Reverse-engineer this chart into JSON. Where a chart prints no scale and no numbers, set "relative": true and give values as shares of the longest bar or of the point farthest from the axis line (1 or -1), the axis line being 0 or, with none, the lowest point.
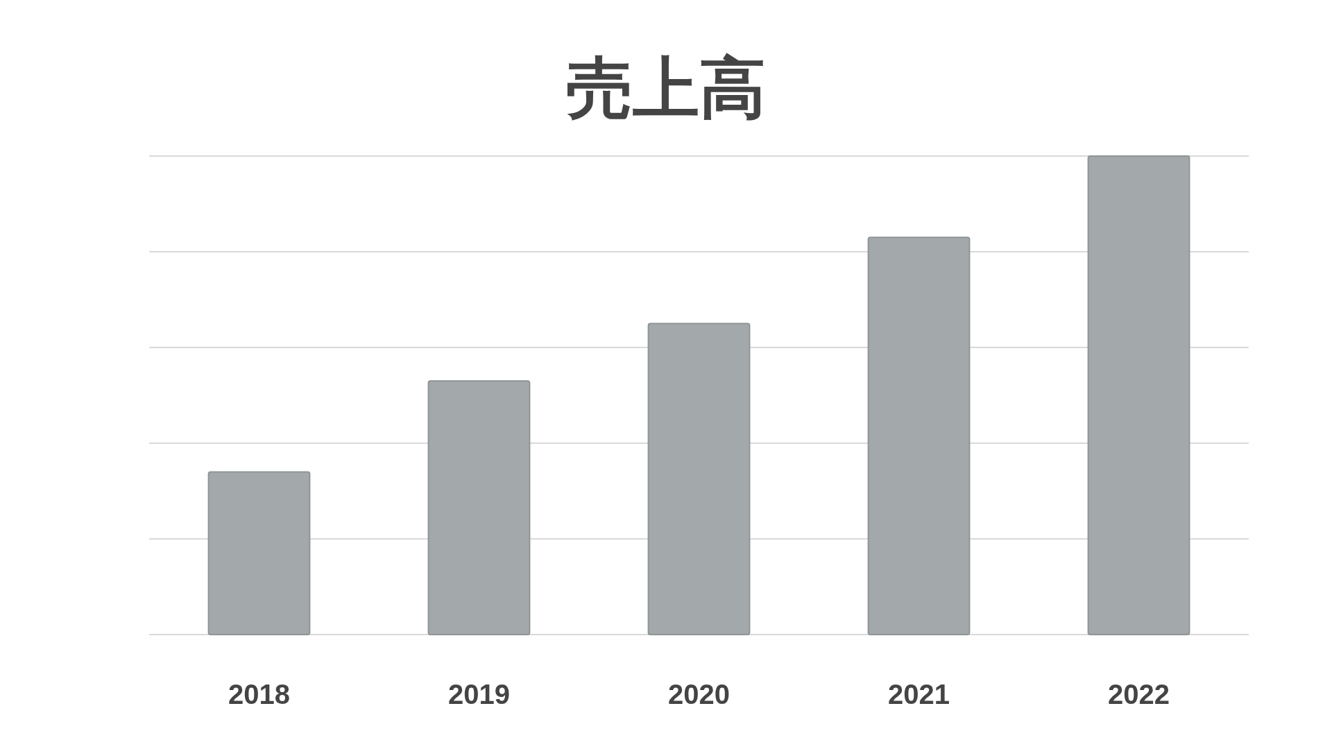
{
  "chart_data": {
    "type": "bar",
    "title": "売上高",
    "categories": [
      "2018",
      "2019",
      "2020",
      "2021",
      "2022"
    ],
    "values": [
      0.34,
      0.53,
      0.65,
      0.83,
      1
    ],
    "color": "#a3a9aa",
    "relative": true,
    "grid": "y"
  }
}
